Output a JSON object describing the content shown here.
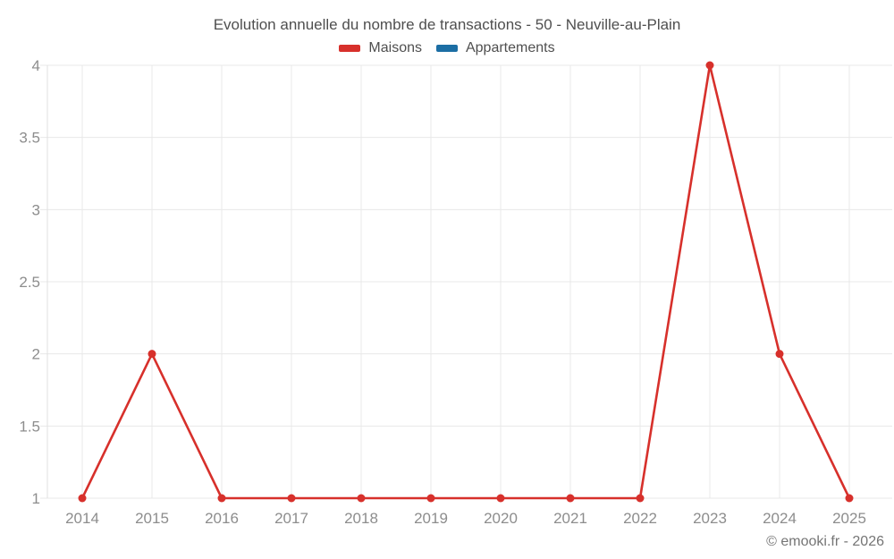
{
  "title": "Evolution annuelle du nombre de transactions - 50 - Neuville-au-Plain",
  "legend": {
    "items": [
      {
        "label": "Maisons",
        "color": "#d7302b"
      },
      {
        "label": "Appartements",
        "color": "#1c6ea4"
      }
    ]
  },
  "footer": "© emooki.fr - 2026",
  "colors": {
    "background": "#ffffff",
    "gridline": "#e8e8e8",
    "axis_line": "#e0e0e0",
    "tick_label": "#8d8d8d",
    "title_text": "#4f4f4f",
    "footer_text": "#757575",
    "maisons": "#d7302b",
    "appartements": "#1c6ea4"
  },
  "chart_data": {
    "type": "line",
    "title": "Evolution annuelle du nombre de transactions - 50 - Neuville-au-Plain",
    "x": [
      2014,
      2015,
      2016,
      2017,
      2018,
      2019,
      2020,
      2021,
      2022,
      2023,
      2024,
      2025
    ],
    "series": [
      {
        "name": "Maisons",
        "color": "#d7302b",
        "values": [
          1,
          2,
          1,
          1,
          1,
          1,
          1,
          1,
          1,
          4,
          2,
          1
        ]
      },
      {
        "name": "Appartements",
        "color": "#1c6ea4",
        "values": []
      }
    ],
    "xlabel": "",
    "ylabel": "",
    "ylim": [
      1,
      4
    ],
    "yticks": [
      1,
      1.5,
      2,
      2.5,
      3,
      3.5,
      4
    ],
    "ytick_labels": [
      "1",
      "1.5",
      "2",
      "2.5",
      "3",
      "3.5",
      "4"
    ],
    "grid": true,
    "legend_position": "top",
    "marker": "circle"
  }
}
